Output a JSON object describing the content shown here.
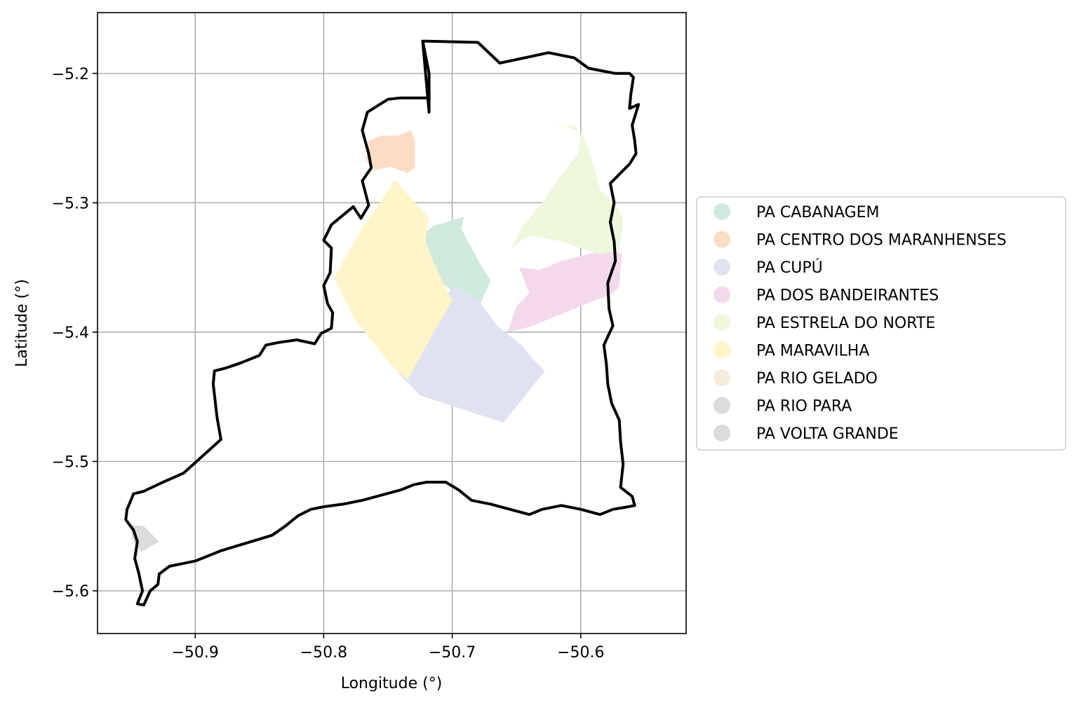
{
  "chart_data": {
    "type": "map",
    "xlabel": "Longitude (°)",
    "ylabel": "Latitude (°)",
    "xlim": [
      -50.976,
      -50.518
    ],
    "ylim": [
      -5.633,
      -5.153
    ],
    "xticks": [
      -50.9,
      -50.8,
      -50.7,
      -50.6
    ],
    "xtick_labels": [
      "−50.9",
      "−50.8",
      "−50.7",
      "−50.6"
    ],
    "yticks": [
      -5.2,
      -5.3,
      -5.4,
      -5.5,
      -5.6
    ],
    "ytick_labels": [
      "−5.2",
      "−5.3",
      "−5.4",
      "−5.5",
      "−5.6"
    ],
    "grid": true,
    "legend_position": "center-right outside",
    "legend": [
      {
        "label": "PA CABANAGEM",
        "color": "#cfeadc"
      },
      {
        "label": "PA CENTRO DOS MARANHENSES",
        "color": "#fddcc6"
      },
      {
        "label": "PA CUPÚ",
        "color": "#dfe3f1"
      },
      {
        "label": "PA DOS BANDEIRANTES",
        "color": "#f4d9ec"
      },
      {
        "label": "PA ESTRELA DO NORTE",
        "color": "#eef8dd"
      },
      {
        "label": "PA MARAVILHA",
        "color": "#fff5c9"
      },
      {
        "label": "PA RIO GELADO",
        "color": "#f4ebdd"
      },
      {
        "label": "PA RIO PARA",
        "color": "#dcdcdc"
      },
      {
        "label": "PA VOLTA GRANDE",
        "color": "#dcdcdc"
      }
    ],
    "boundary_color": "#000000",
    "boundary": [
      [
        -50.718,
        -5.23
      ],
      [
        -50.718,
        -5.2
      ],
      [
        -50.723,
        -5.175
      ],
      [
        -50.68,
        -5.176
      ],
      [
        -50.663,
        -5.192
      ],
      [
        -50.625,
        -5.184
      ],
      [
        -50.605,
        -5.188
      ],
      [
        -50.594,
        -5.196
      ],
      [
        -50.573,
        -5.2
      ],
      [
        -50.562,
        -5.2
      ],
      [
        -50.559,
        -5.203
      ],
      [
        -50.561,
        -5.216
      ],
      [
        -50.562,
        -5.227
      ],
      [
        -50.555,
        -5.224
      ],
      [
        -50.56,
        -5.24
      ],
      [
        -50.558,
        -5.252
      ],
      [
        -50.557,
        -5.262
      ],
      [
        -50.562,
        -5.27
      ],
      [
        -50.577,
        -5.285
      ],
      [
        -50.574,
        -5.3
      ],
      [
        -50.577,
        -5.315
      ],
      [
        -50.574,
        -5.33
      ],
      [
        -50.573,
        -5.345
      ],
      [
        -50.579,
        -5.362
      ],
      [
        -50.578,
        -5.382
      ],
      [
        -50.575,
        -5.395
      ],
      [
        -50.582,
        -5.41
      ],
      [
        -50.58,
        -5.425
      ],
      [
        -50.579,
        -5.44
      ],
      [
        -50.576,
        -5.455
      ],
      [
        -50.57,
        -5.468
      ],
      [
        -50.569,
        -5.485
      ],
      [
        -50.567,
        -5.502
      ],
      [
        -50.569,
        -5.52
      ],
      [
        -50.56,
        -5.527
      ],
      [
        -50.558,
        -5.534
      ],
      [
        -50.563,
        -5.535
      ],
      [
        -50.575,
        -5.537
      ],
      [
        -50.585,
        -5.541
      ],
      [
        -50.6,
        -5.537
      ],
      [
        -50.615,
        -5.534
      ],
      [
        -50.63,
        -5.537
      ],
      [
        -50.64,
        -5.541
      ],
      [
        -50.655,
        -5.537
      ],
      [
        -50.67,
        -5.533
      ],
      [
        -50.685,
        -5.53
      ],
      [
        -50.695,
        -5.522
      ],
      [
        -50.705,
        -5.516
      ],
      [
        -50.72,
        -5.516
      ],
      [
        -50.73,
        -5.518
      ],
      [
        -50.74,
        -5.522
      ],
      [
        -50.755,
        -5.526
      ],
      [
        -50.77,
        -5.53
      ],
      [
        -50.785,
        -5.533
      ],
      [
        -50.8,
        -5.535
      ],
      [
        -50.81,
        -5.537
      ],
      [
        -50.82,
        -5.542
      ],
      [
        -50.83,
        -5.55
      ],
      [
        -50.84,
        -5.557
      ],
      [
        -50.85,
        -5.56
      ],
      [
        -50.86,
        -5.563
      ],
      [
        -50.87,
        -5.566
      ],
      [
        -50.88,
        -5.569
      ],
      [
        -50.89,
        -5.573
      ],
      [
        -50.9,
        -5.577
      ],
      [
        -50.92,
        -5.581
      ],
      [
        -50.928,
        -5.587
      ],
      [
        -50.929,
        -5.595
      ],
      [
        -50.935,
        -5.6
      ],
      [
        -50.94,
        -5.611
      ],
      [
        -50.945,
        -5.61
      ],
      [
        -50.941,
        -5.6
      ],
      [
        -50.944,
        -5.586
      ],
      [
        -50.947,
        -5.575
      ],
      [
        -50.945,
        -5.562
      ],
      [
        -50.948,
        -5.553
      ],
      [
        -50.954,
        -5.545
      ],
      [
        -50.953,
        -5.537
      ],
      [
        -50.95,
        -5.53
      ],
      [
        -50.948,
        -5.525
      ],
      [
        -50.94,
        -5.523
      ],
      [
        -50.925,
        -5.516
      ],
      [
        -50.909,
        -5.509
      ],
      [
        -50.88,
        -5.483
      ],
      [
        -50.883,
        -5.466
      ],
      [
        -50.886,
        -5.44
      ],
      [
        -50.885,
        -5.43
      ],
      [
        -50.877,
        -5.428
      ],
      [
        -50.865,
        -5.424
      ],
      [
        -50.85,
        -5.418
      ],
      [
        -50.845,
        -5.41
      ],
      [
        -50.835,
        -5.408
      ],
      [
        -50.821,
        -5.406
      ],
      [
        -50.807,
        -5.409
      ],
      [
        -50.802,
        -5.401
      ],
      [
        -50.794,
        -5.397
      ],
      [
        -50.793,
        -5.385
      ],
      [
        -50.797,
        -5.378
      ],
      [
        -50.8,
        -5.364
      ],
      [
        -50.795,
        -5.354
      ],
      [
        -50.794,
        -5.335
      ],
      [
        -50.8,
        -5.329
      ],
      [
        -50.794,
        -5.317
      ],
      [
        -50.777,
        -5.303
      ],
      [
        -50.771,
        -5.312
      ],
      [
        -50.765,
        -5.302
      ],
      [
        -50.77,
        -5.283
      ],
      [
        -50.763,
        -5.273
      ],
      [
        -50.765,
        -5.262
      ],
      [
        -50.77,
        -5.244
      ],
      [
        -50.766,
        -5.23
      ],
      [
        -50.75,
        -5.22
      ],
      [
        -50.741,
        -5.219
      ],
      [
        -50.718,
        -5.219
      ],
      [
        -50.718,
        -5.2
      ],
      [
        -50.723,
        -5.175
      ]
    ],
    "areas": [
      {
        "name": "PA CABANAGEM",
        "color": "#cfeadc",
        "polygon": [
          [
            -50.715,
            -5.318
          ],
          [
            -50.691,
            -5.311
          ],
          [
            -50.693,
            -5.32
          ],
          [
            -50.678,
            -5.348
          ],
          [
            -50.67,
            -5.36
          ],
          [
            -50.68,
            -5.382
          ],
          [
            -50.695,
            -5.373
          ],
          [
            -50.712,
            -5.358
          ],
          [
            -50.718,
            -5.34
          ],
          [
            -50.722,
            -5.324
          ]
        ]
      },
      {
        "name": "PA CENTRO DOS MARANHENSES",
        "color": "#fddcc6",
        "polygon": [
          [
            -50.765,
            -5.252
          ],
          [
            -50.755,
            -5.248
          ],
          [
            -50.742,
            -5.248
          ],
          [
            -50.732,
            -5.244
          ],
          [
            -50.729,
            -5.252
          ],
          [
            -50.729,
            -5.273
          ],
          [
            -50.735,
            -5.277
          ],
          [
            -50.748,
            -5.272
          ],
          [
            -50.76,
            -5.275
          ],
          [
            -50.767,
            -5.268
          ]
        ]
      },
      {
        "name": "PA CUPÚ",
        "color": "#dfe3f1",
        "polygon": [
          [
            -50.7,
            -5.364
          ],
          [
            -50.68,
            -5.375
          ],
          [
            -50.665,
            -5.395
          ],
          [
            -50.646,
            -5.41
          ],
          [
            -50.638,
            -5.42
          ],
          [
            -50.628,
            -5.43
          ],
          [
            -50.66,
            -5.47
          ],
          [
            -50.725,
            -5.449
          ],
          [
            -50.742,
            -5.432
          ],
          [
            -50.718,
            -5.4
          ]
        ]
      },
      {
        "name": "PA DOS BANDEIRANTES",
        "color": "#f4d9ec",
        "polygon": [
          [
            -50.648,
            -5.35
          ],
          [
            -50.632,
            -5.352
          ],
          [
            -50.615,
            -5.345
          ],
          [
            -50.575,
            -5.335
          ],
          [
            -50.568,
            -5.34
          ],
          [
            -50.57,
            -5.365
          ],
          [
            -50.575,
            -5.37
          ],
          [
            -50.64,
            -5.396
          ],
          [
            -50.657,
            -5.4
          ],
          [
            -50.65,
            -5.38
          ],
          [
            -50.64,
            -5.37
          ]
        ]
      },
      {
        "name": "PA ESTRELA DO NORTE",
        "color": "#eef8dd",
        "polygon": [
          [
            -50.618,
            -5.242
          ],
          [
            -50.605,
            -5.24
          ],
          [
            -50.598,
            -5.248
          ],
          [
            -50.59,
            -5.27
          ],
          [
            -50.585,
            -5.29
          ],
          [
            -50.574,
            -5.3
          ],
          [
            -50.567,
            -5.313
          ],
          [
            -50.57,
            -5.337
          ],
          [
            -50.585,
            -5.34
          ],
          [
            -50.615,
            -5.33
          ],
          [
            -50.64,
            -5.325
          ],
          [
            -50.654,
            -5.335
          ],
          [
            -50.645,
            -5.318
          ],
          [
            -50.63,
            -5.3
          ],
          [
            -50.618,
            -5.282
          ],
          [
            -50.602,
            -5.262
          ],
          [
            -50.6,
            -5.245
          ],
          [
            -50.615,
            -5.24
          ]
        ]
      },
      {
        "name": "PA MARAVILHA",
        "color": "#fff5c9",
        "polygon": [
          [
            -50.745,
            -5.282
          ],
          [
            -50.756,
            -5.3
          ],
          [
            -50.769,
            -5.318
          ],
          [
            -50.78,
            -5.337
          ],
          [
            -50.792,
            -5.358
          ],
          [
            -50.776,
            -5.39
          ],
          [
            -50.748,
            -5.425
          ],
          [
            -50.735,
            -5.437
          ],
          [
            -50.712,
            -5.396
          ],
          [
            -50.7,
            -5.376
          ],
          [
            -50.714,
            -5.347
          ],
          [
            -50.721,
            -5.33
          ],
          [
            -50.718,
            -5.312
          ]
        ]
      },
      {
        "name": "PA RIO GELADO",
        "color": "#f4ebdd",
        "polygon": []
      },
      {
        "name": "PA RIO PARA",
        "color": "#dcdcdc",
        "polygon": []
      },
      {
        "name": "PA VOLTA GRANDE",
        "color": "#dcdcdc",
        "polygon": [
          [
            -50.95,
            -5.549
          ],
          [
            -50.94,
            -5.55
          ],
          [
            -50.928,
            -5.562
          ],
          [
            -50.942,
            -5.57
          ],
          [
            -50.949,
            -5.56
          ]
        ]
      }
    ]
  }
}
